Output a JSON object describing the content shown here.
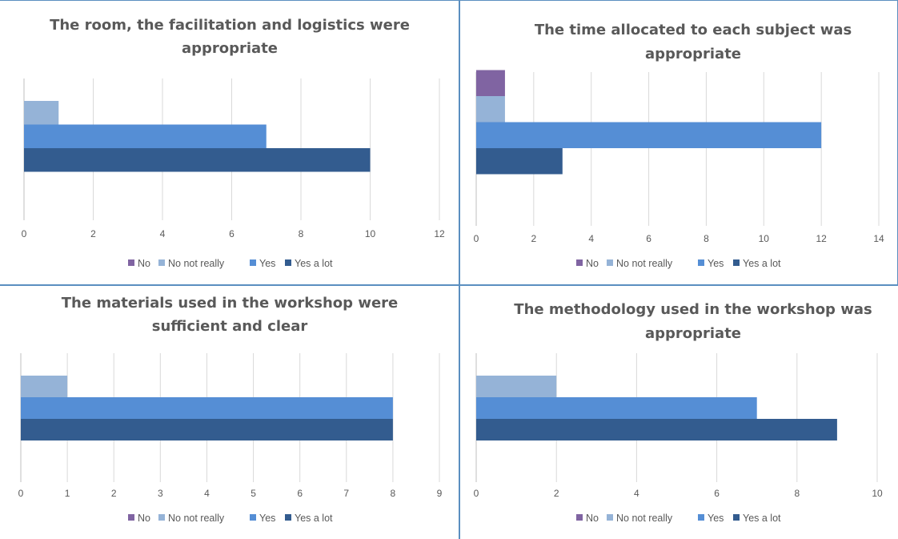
{
  "colors": {
    "No": "#8064a2",
    "No not really": "#95b3d7",
    "Yes": "#558ed5",
    "Yes a lot": "#335c8f",
    "grid": "#d9d9d9",
    "axis": "#bfbfbf",
    "border": "#5b8fc0",
    "text": "#595959"
  },
  "chart_data": [
    {
      "type": "bar",
      "orientation": "horizontal",
      "title": "The room, the facilitation and logistics were appropriate",
      "title_lines": [
        "The room, the facilitation and logistics were",
        "appropriate"
      ],
      "xlim": [
        0,
        12
      ],
      "xticks": [
        0,
        2,
        4,
        6,
        8,
        10,
        12
      ],
      "grid": true,
      "legend_position": "bottom",
      "series": [
        {
          "name": "No",
          "value": 0
        },
        {
          "name": "No not really",
          "value": 1
        },
        {
          "name": "Yes",
          "value": 7
        },
        {
          "name": "Yes a lot",
          "value": 10
        }
      ]
    },
    {
      "type": "bar",
      "orientation": "horizontal",
      "title": "The time allocated to each subject was appropriate",
      "title_lines": [
        "The time allocated to each subject was",
        "appropriate"
      ],
      "xlim": [
        0,
        14
      ],
      "xticks": [
        0,
        2,
        4,
        6,
        8,
        10,
        12,
        14
      ],
      "grid": true,
      "legend_position": "bottom",
      "series": [
        {
          "name": "No",
          "value": 1
        },
        {
          "name": "No not really",
          "value": 1
        },
        {
          "name": "Yes",
          "value": 12
        },
        {
          "name": "Yes a lot",
          "value": 3
        }
      ]
    },
    {
      "type": "bar",
      "orientation": "horizontal",
      "title": "The materials used in the workshop were sufficient and clear",
      "title_lines": [
        "The materials used in the workshop were",
        "sufficient and clear"
      ],
      "xlim": [
        0,
        9
      ],
      "xticks": [
        0,
        1,
        2,
        3,
        4,
        5,
        6,
        7,
        8,
        9
      ],
      "grid": true,
      "legend_position": "bottom",
      "series": [
        {
          "name": "No",
          "value": 0
        },
        {
          "name": "No not really",
          "value": 1
        },
        {
          "name": "Yes",
          "value": 8
        },
        {
          "name": "Yes a lot",
          "value": 8
        }
      ]
    },
    {
      "type": "bar",
      "orientation": "horizontal",
      "title": "The methodology used in the workshop was appropriate",
      "title_lines": [
        "The methodology used in the workshop was",
        "appropriate"
      ],
      "xlim": [
        0,
        10
      ],
      "xticks": [
        0,
        2,
        4,
        6,
        8,
        10
      ],
      "grid": true,
      "legend_position": "bottom",
      "series": [
        {
          "name": "No",
          "value": 0
        },
        {
          "name": "No not really",
          "value": 2
        },
        {
          "name": "Yes",
          "value": 7
        },
        {
          "name": "Yes a lot",
          "value": 9
        }
      ]
    }
  ]
}
